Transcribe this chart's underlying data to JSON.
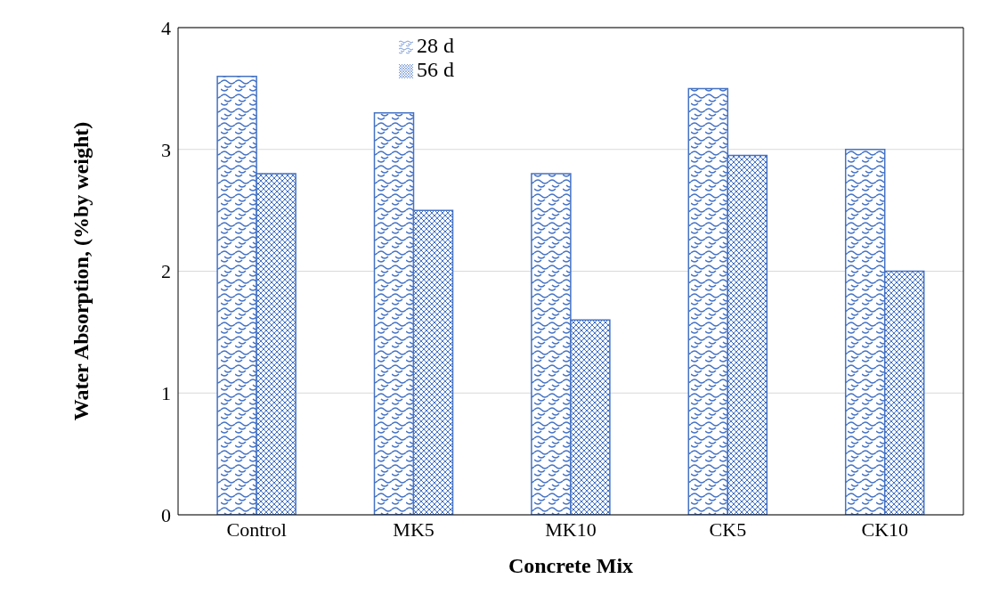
{
  "chart_data": {
    "type": "bar",
    "xlabel": "Concrete Mix",
    "ylabel": "Water Absorption, (%by weight)",
    "categories": [
      "Control",
      "MK5",
      "MK10",
      "CK5",
      "CK10"
    ],
    "series": [
      {
        "name": "28 d",
        "color": "#4472c4",
        "values": [
          3.6,
          3.3,
          2.8,
          3.5,
          3.0
        ]
      },
      {
        "name": "56 d",
        "color": "#4472c4",
        "values": [
          2.8,
          2.5,
          1.6,
          2.95,
          2.0
        ]
      }
    ],
    "ylim": [
      0,
      4
    ],
    "yticks": [
      0,
      1,
      2,
      3,
      4
    ],
    "grid": "y",
    "legend": "top"
  }
}
